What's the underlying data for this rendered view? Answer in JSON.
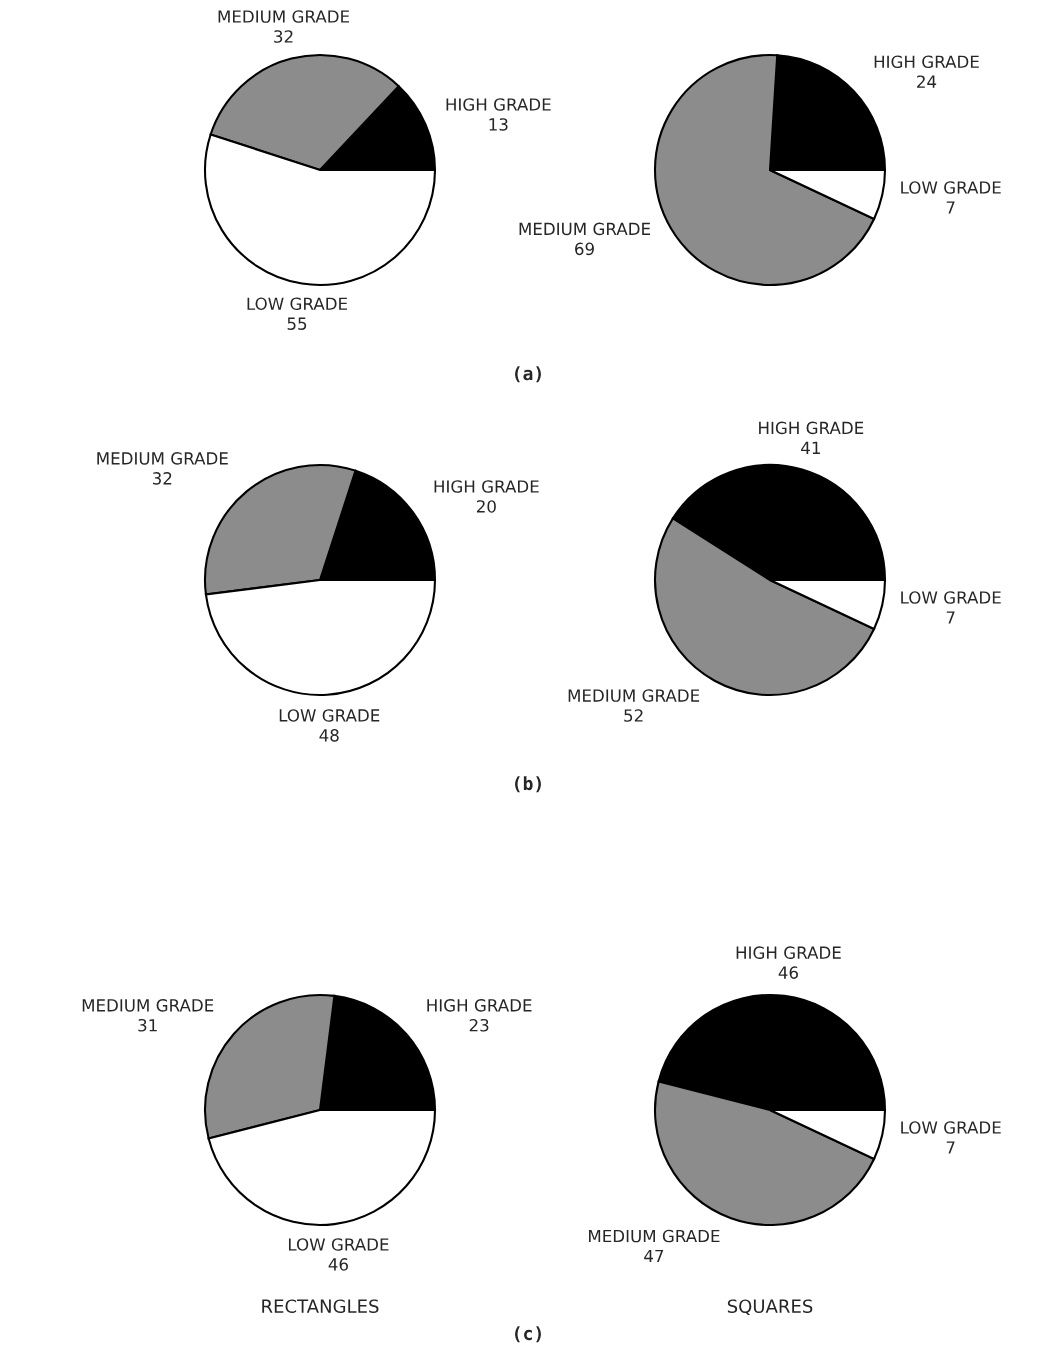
{
  "chart_data": [
    {
      "type": "pie",
      "categories": [
        "HIGH GRADE",
        "MEDIUM GRADE",
        "LOW GRADE"
      ],
      "values": [
        13,
        32,
        55
      ],
      "colors": [
        "#000000",
        "#8c8c8c",
        "#ffffff"
      ],
      "data_labels": true,
      "annotations": [
        "(a)"
      ]
    },
    {
      "type": "pie",
      "categories": [
        "HIGH GRADE",
        "MEDIUM GRADE",
        "LOW GRADE"
      ],
      "values": [
        24,
        69,
        7
      ],
      "colors": [
        "#000000",
        "#8c8c8c",
        "#ffffff"
      ],
      "data_labels": true
    },
    {
      "type": "pie",
      "categories": [
        "HIGH GRADE",
        "MEDIUM GRADE",
        "LOW GRADE"
      ],
      "values": [
        20,
        32,
        48
      ],
      "colors": [
        "#000000",
        "#8c8c8c",
        "#ffffff"
      ],
      "data_labels": true,
      "annotations": [
        "(b)"
      ]
    },
    {
      "type": "pie",
      "categories": [
        "HIGH GRADE",
        "MEDIUM GRADE",
        "LOW GRADE"
      ],
      "values": [
        41,
        52,
        7
      ],
      "colors": [
        "#000000",
        "#8c8c8c",
        "#ffffff"
      ],
      "data_labels": true
    },
    {
      "type": "pie",
      "categories": [
        "HIGH GRADE",
        "MEDIUM GRADE",
        "LOW GRADE"
      ],
      "values": [
        23,
        31,
        46
      ],
      "colors": [
        "#000000",
        "#8c8c8c",
        "#ffffff"
      ],
      "data_labels": true,
      "annotations": [
        "RECTANGLES",
        "(c)"
      ]
    },
    {
      "type": "pie",
      "categories": [
        "HIGH GRADE",
        "MEDIUM GRADE",
        "LOW GRADE"
      ],
      "values": [
        46,
        47,
        7
      ],
      "colors": [
        "#000000",
        "#8c8c8c",
        "#ffffff"
      ],
      "data_labels": true,
      "annotations": [
        "SQUARES"
      ]
    }
  ]
}
